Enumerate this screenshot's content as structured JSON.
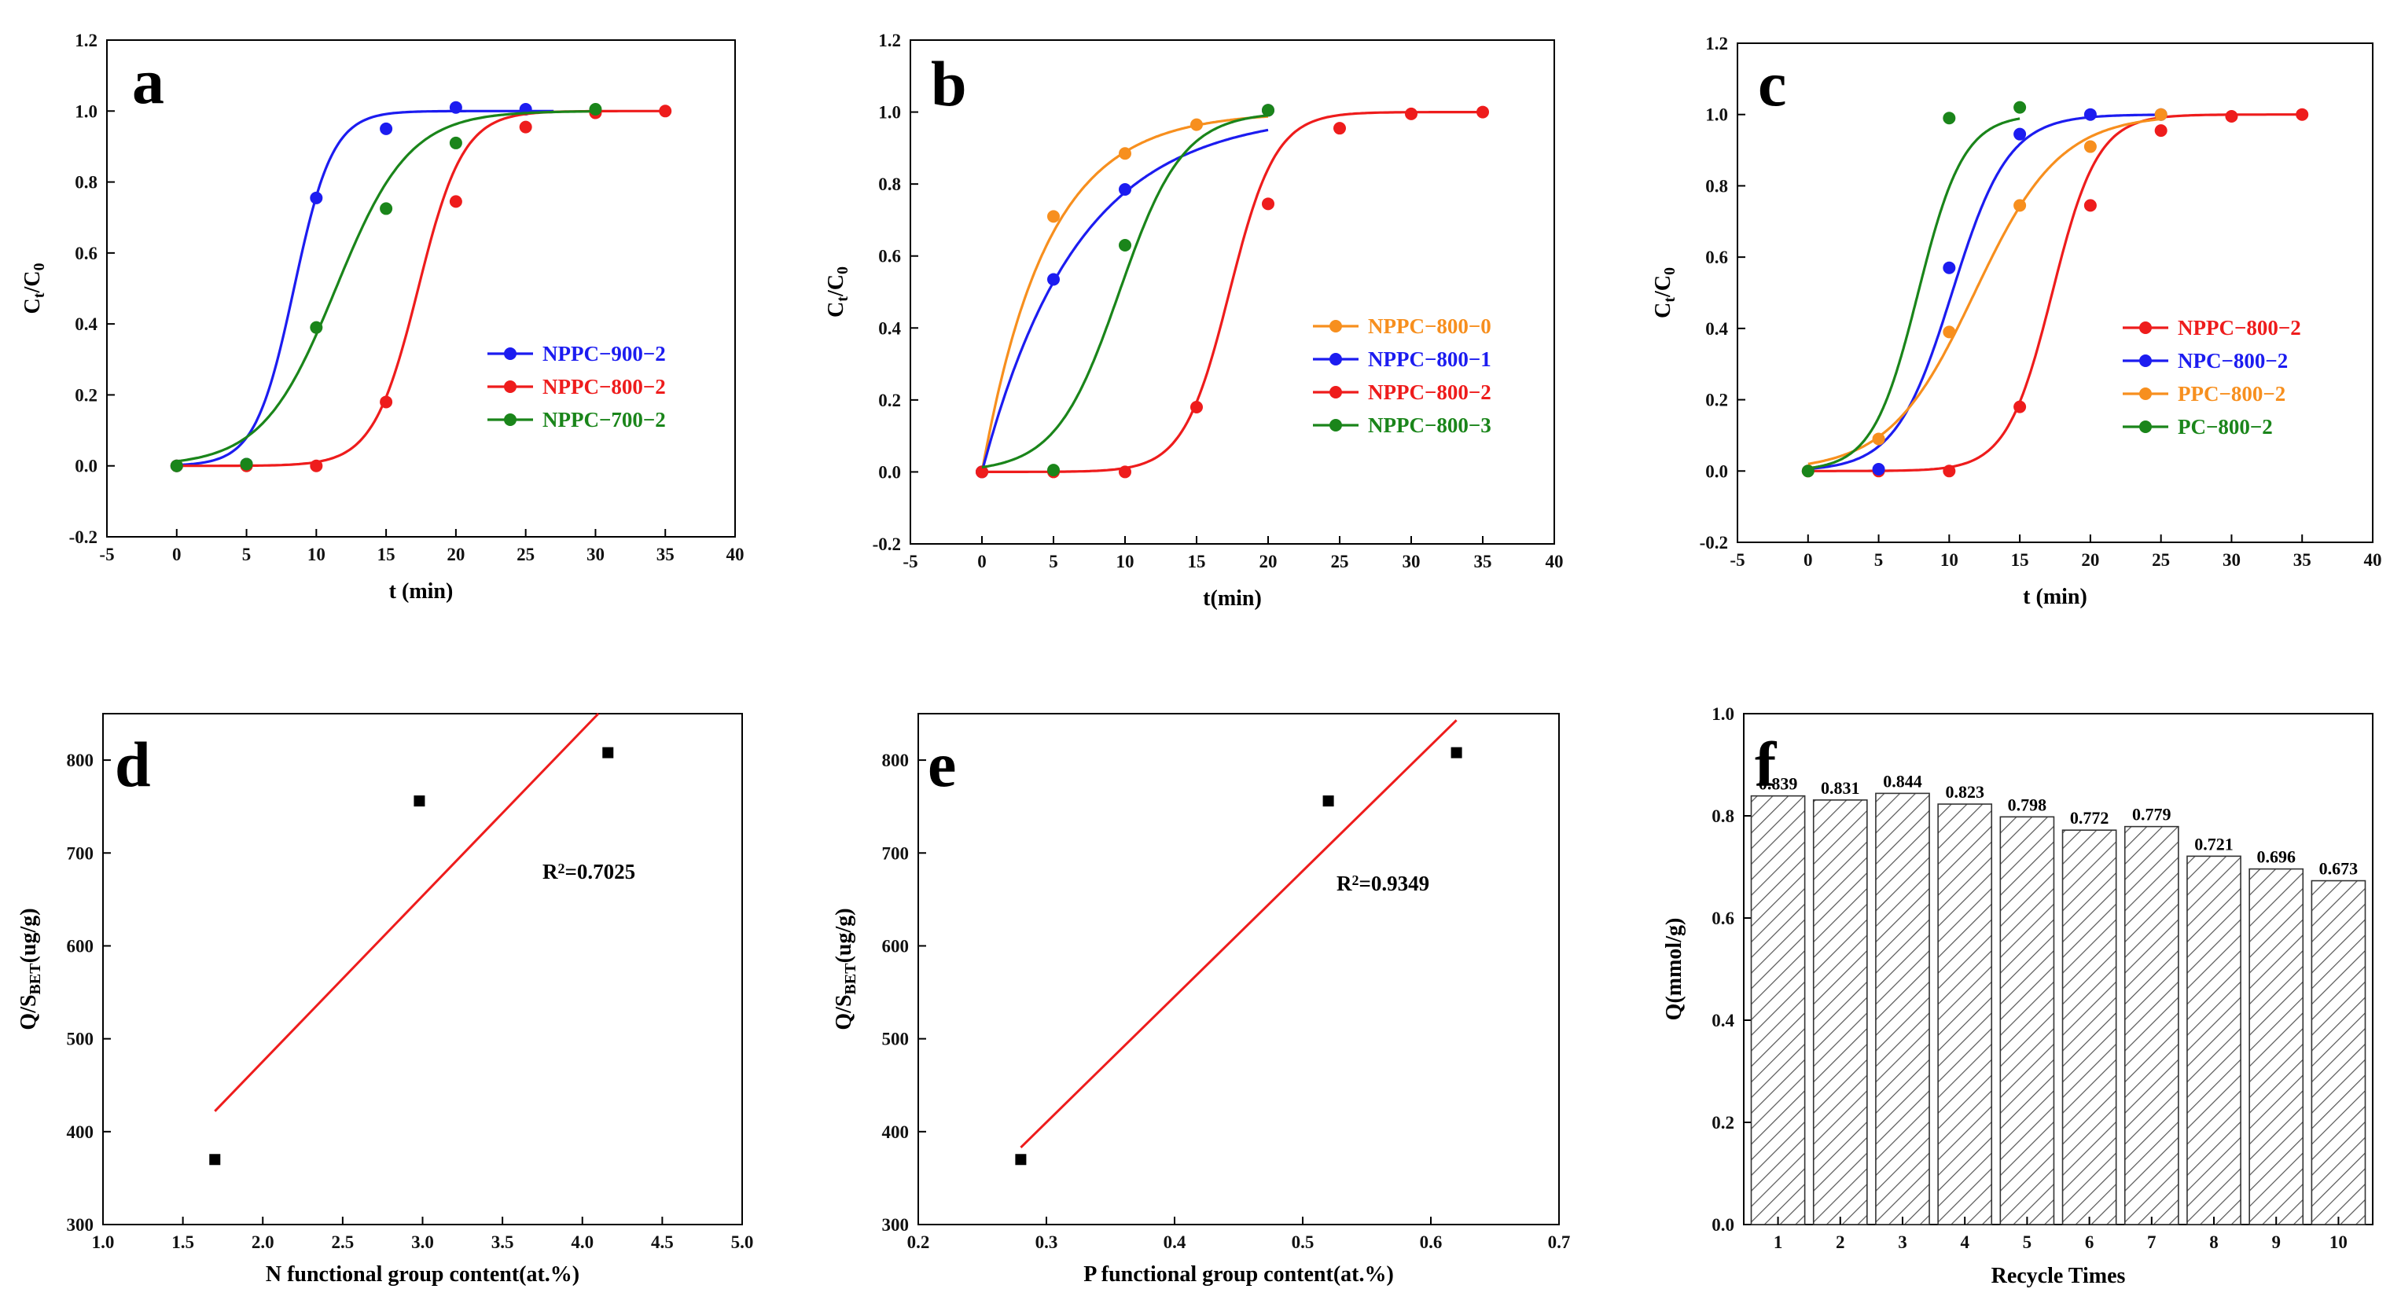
{
  "colors": {
    "red": "#ee1c1c",
    "blue": "#1c1cf0",
    "green": "#1a851a",
    "orange": "#f78f1e",
    "black": "#000000"
  },
  "chart_data": [
    {
      "panel": "a",
      "type": "scatter",
      "fit": "sigmoid",
      "xlabel": "t (min)",
      "ylabel_main": "C",
      "ylabel_sub1": "t",
      "ylabel_mid": "/C",
      "ylabel_sub2": "0",
      "xlim": [
        -5,
        40
      ],
      "ylim": [
        -0.2,
        1.2
      ],
      "xticks": [
        -5,
        0,
        5,
        10,
        15,
        20,
        25,
        30,
        35,
        40
      ],
      "yticks": [
        -0.2,
        0.0,
        0.2,
        0.4,
        0.6,
        0.8,
        1.0,
        1.2
      ],
      "legend_position": "center-right",
      "series": [
        {
          "name": "NPPC−900−2",
          "color": "blue",
          "x": [
            0,
            5,
            10,
            15,
            20,
            25
          ],
          "y": [
            0.0,
            0.005,
            0.755,
            0.95,
            1.01,
            1.005
          ],
          "t50": 8.4,
          "k": 0.72,
          "x_end": 27
        },
        {
          "name": "NPPC−800−2",
          "color": "red",
          "x": [
            0,
            5,
            10,
            15,
            20,
            25,
            30,
            35
          ],
          "y": [
            0.0,
            0.0,
            0.0,
            0.18,
            0.745,
            0.955,
            0.995,
            1.0
          ],
          "t50": 17.3,
          "k": 0.62,
          "x_end": 35
        },
        {
          "name": "NPPC−700−2",
          "color": "green",
          "x": [
            0,
            5,
            10,
            15,
            20,
            30
          ],
          "y": [
            0.0,
            0.005,
            0.39,
            0.725,
            0.91,
            1.005
          ],
          "t50": 11.4,
          "k": 0.38,
          "x_end": 30
        }
      ]
    },
    {
      "panel": "b",
      "type": "scatter",
      "fit": "sigmoid",
      "xlabel": "t(min)",
      "ylabel_main": "C",
      "ylabel_sub1": "t",
      "ylabel_mid": "/C",
      "ylabel_sub2": "0",
      "xlim": [
        -5,
        40
      ],
      "ylim": [
        -0.2,
        1.2
      ],
      "xticks": [
        -5,
        0,
        5,
        10,
        15,
        20,
        25,
        30,
        35,
        40
      ],
      "yticks": [
        -0.2,
        0.0,
        0.2,
        0.4,
        0.6,
        0.8,
        1.0,
        1.2
      ],
      "legend_position": "center-right",
      "series": [
        {
          "name": "NPPC−800−0",
          "color": "orange",
          "x": [
            0,
            5,
            10,
            15,
            20
          ],
          "y": [
            0.0,
            0.71,
            0.885,
            0.965,
            1.005
          ],
          "fit_kind": "exp",
          "rate": 0.22,
          "x_end": 20
        },
        {
          "name": "NPPC−800−1",
          "color": "blue",
          "x": [
            0,
            5,
            10,
            20
          ],
          "y": [
            0.0,
            0.535,
            0.785,
            1.005
          ],
          "fit_kind": "exp",
          "rate": 0.15,
          "x_end": 20
        },
        {
          "name": "NPPC−800−2",
          "color": "red",
          "x": [
            0,
            5,
            10,
            15,
            20,
            25,
            30,
            35
          ],
          "y": [
            0.0,
            0.0,
            0.0,
            0.18,
            0.745,
            0.955,
            0.995,
            1.0
          ],
          "t50": 17.3,
          "k": 0.62,
          "x_end": 35
        },
        {
          "name": "NPPC−800−3",
          "color": "green",
          "x": [
            5,
            10,
            20
          ],
          "y": [
            0.005,
            0.63,
            1.005
          ],
          "t50": 9.6,
          "k": 0.45,
          "x_end": 20
        }
      ]
    },
    {
      "panel": "c",
      "type": "scatter",
      "fit": "sigmoid",
      "xlabel": "t (min)",
      "ylabel_main": "C",
      "ylabel_sub1": "t",
      "ylabel_mid": "/C",
      "ylabel_sub2": "0",
      "xlim": [
        -5,
        40
      ],
      "ylim": [
        -0.2,
        1.2
      ],
      "xticks": [
        -5,
        0,
        5,
        10,
        15,
        20,
        25,
        30,
        35,
        40
      ],
      "yticks": [
        -0.2,
        0.0,
        0.2,
        0.4,
        0.6,
        0.8,
        1.0,
        1.2
      ],
      "legend_position": "center-right",
      "series": [
        {
          "name": "NPPC−800−2",
          "color": "red",
          "x": [
            0,
            5,
            10,
            15,
            20,
            25,
            30,
            35
          ],
          "y": [
            0.0,
            0.0,
            0.0,
            0.18,
            0.745,
            0.955,
            0.995,
            1.0
          ],
          "t50": 17.3,
          "k": 0.62,
          "x_end": 35
        },
        {
          "name": "NPC−800−2",
          "color": "blue",
          "x": [
            5,
            10,
            15,
            20,
            25
          ],
          "y": [
            0.005,
            0.57,
            0.945,
            1.0,
            1.0
          ],
          "t50": 10.2,
          "k": 0.5,
          "x_end": 25
        },
        {
          "name": "PPC−800−2",
          "color": "orange",
          "x": [
            5,
            10,
            15,
            20,
            25
          ],
          "y": [
            0.09,
            0.39,
            0.745,
            0.91,
            1.0
          ],
          "t50": 11.8,
          "k": 0.33,
          "x_end": 25
        },
        {
          "name": "PC−800−2",
          "color": "green",
          "x": [
            0,
            10,
            15
          ],
          "y": [
            0.0,
            0.99,
            1.02
          ],
          "t50": 7.8,
          "k": 0.62,
          "x_end": 15
        }
      ]
    },
    {
      "panel": "d",
      "type": "scatter",
      "fit": "linear",
      "xlabel": "N functional group content(at.%)",
      "ylabel_main": "Q/S",
      "ylabel_sub": "BET",
      "ylabel_tail": "(ug/g)",
      "xlim": [
        1.0,
        5.0
      ],
      "ylim": [
        300,
        850
      ],
      "xticks": [
        1.0,
        1.5,
        2.0,
        2.5,
        3.0,
        3.5,
        4.0,
        4.5,
        5.0
      ],
      "yticks": [
        300,
        400,
        500,
        600,
        700,
        800
      ],
      "points": {
        "x": [
          1.7,
          2.98,
          4.16
        ],
        "y": [
          370,
          756,
          808
        ]
      },
      "fit_line": {
        "x": [
          1.7,
          4.1
        ],
        "y": [
          422,
          850
        ]
      },
      "r2_prefix": "R",
      "r2_sup": "2",
      "r2_value": "=0.7025"
    },
    {
      "panel": "e",
      "type": "scatter",
      "fit": "linear",
      "xlabel": "P functional group content(at.%)",
      "ylabel_main": "Q/S",
      "ylabel_sub": "BET",
      "ylabel_tail": "(ug/g)",
      "xlim": [
        0.2,
        0.7
      ],
      "ylim": [
        300,
        850
      ],
      "xticks": [
        0.2,
        0.3,
        0.4,
        0.5,
        0.6,
        0.7
      ],
      "yticks": [
        300,
        400,
        500,
        600,
        700,
        800
      ],
      "points": {
        "x": [
          0.28,
          0.52,
          0.62
        ],
        "y": [
          370,
          756,
          808
        ]
      },
      "fit_line": {
        "x": [
          0.28,
          0.62
        ],
        "y": [
          383,
          843
        ]
      },
      "r2_prefix": "R",
      "r2_sup": "2",
      "r2_value": "=0.9349"
    },
    {
      "panel": "f",
      "type": "bar",
      "pattern": "hatched",
      "xlabel": "Recycle Times",
      "ylabel": "Q(mmol/g)",
      "ylim": [
        0.0,
        1.0
      ],
      "yticks": [
        0.0,
        0.2,
        0.4,
        0.6,
        0.8,
        1.0
      ],
      "categories": [
        "1",
        "2",
        "3",
        "4",
        "5",
        "6",
        "7",
        "8",
        "9",
        "10"
      ],
      "values": [
        0.839,
        0.831,
        0.844,
        0.823,
        0.798,
        0.772,
        0.779,
        0.721,
        0.696,
        0.673
      ],
      "labels": [
        "0.839",
        "0.831",
        "0.844",
        "0.823",
        "0.798",
        "0.772",
        "0.779",
        "0.721",
        "0.696",
        "0.673"
      ]
    }
  ]
}
